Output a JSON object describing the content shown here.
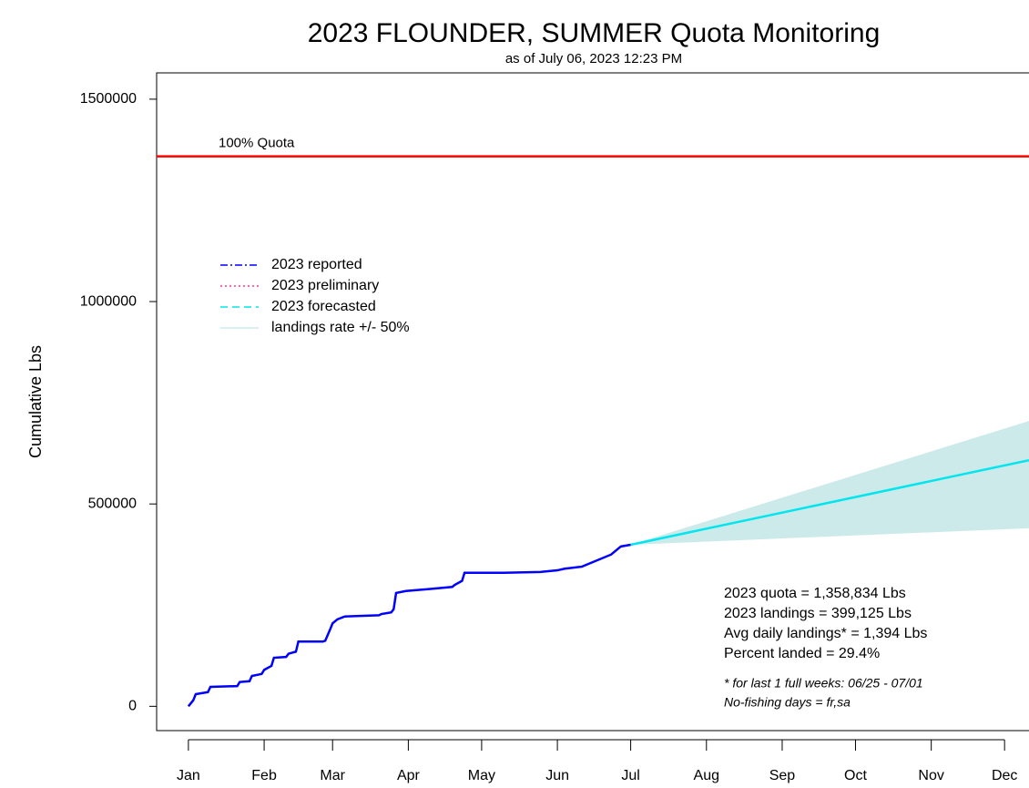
{
  "chart_data": {
    "type": "line",
    "title": "2023 FLOUNDER, SUMMER Quota Monitoring",
    "subtitle": "as of July 06, 2023 12:23 PM",
    "y_label": "Cumulative Lbs",
    "xlim": [
      -12,
      345
    ],
    "ylim": [
      -60000,
      1565000
    ],
    "xticks": [
      {
        "value": 1,
        "label": "Jan"
      },
      {
        "value": 32,
        "label": "Feb"
      },
      {
        "value": 60,
        "label": "Mar"
      },
      {
        "value": 91,
        "label": "Apr"
      },
      {
        "value": 121,
        "label": "May"
      },
      {
        "value": 152,
        "label": "Jun"
      },
      {
        "value": 182,
        "label": "Jul"
      },
      {
        "value": 213,
        "label": "Aug"
      },
      {
        "value": 244,
        "label": "Sep"
      },
      {
        "value": 274,
        "label": "Oct"
      },
      {
        "value": 305,
        "label": "Nov"
      },
      {
        "value": 335,
        "label": "Dec"
      }
    ],
    "yticks": [
      0,
      500000,
      1000000,
      1500000
    ],
    "quota": {
      "value": 1358834,
      "label": "100% Quota",
      "color": "#ff0000"
    },
    "series": [
      {
        "name": "2023 reported",
        "color": "#0000ff",
        "dash": "dashdot",
        "x": [
          1,
          3,
          4,
          9,
          10,
          21,
          22,
          26,
          27,
          31,
          32,
          35,
          36,
          41,
          42,
          45,
          46,
          56,
          57,
          59,
          60,
          62,
          65,
          79,
          80,
          84,
          85,
          86,
          90,
          100,
          109,
          110,
          113,
          114,
          130,
          145,
          152,
          155,
          162,
          168,
          174,
          178,
          182
        ],
        "values": [
          0,
          15000,
          30000,
          35000,
          48000,
          50000,
          60000,
          62000,
          75000,
          80000,
          90000,
          100000,
          120000,
          122000,
          130000,
          135000,
          160000,
          160000,
          162000,
          190000,
          205000,
          215000,
          222000,
          225000,
          228000,
          232000,
          240000,
          280000,
          285000,
          290000,
          295000,
          300000,
          310000,
          330000,
          330000,
          332000,
          336000,
          340000,
          345000,
          360000,
          375000,
          395000,
          399125
        ]
      },
      {
        "name": "2023 forecasted",
        "color": "#00e5ee",
        "dash": "dashed",
        "x": [
          182,
          345
        ],
        "values": [
          399125,
          608000
        ]
      }
    ],
    "band": {
      "name": "landings rate +/- 50%",
      "color": "#cdeaea",
      "x": [
        182,
        345
      ],
      "upper": [
        399125,
        705000
      ],
      "lower": [
        399125,
        440000
      ]
    },
    "legend_extra": {
      "name": "2023 preliminary",
      "color": "#ff3399",
      "dash": "dotted"
    },
    "stats": [
      "2023 quota = 1,358,834 Lbs",
      "2023 landings = 399,125 Lbs",
      "Avg daily landings* = 1,394 Lbs",
      "Percent landed = 29.4%",
      "* for last 1 full weeks: 06/25 - 07/01",
      "No-fishing days = fr,sa"
    ]
  }
}
